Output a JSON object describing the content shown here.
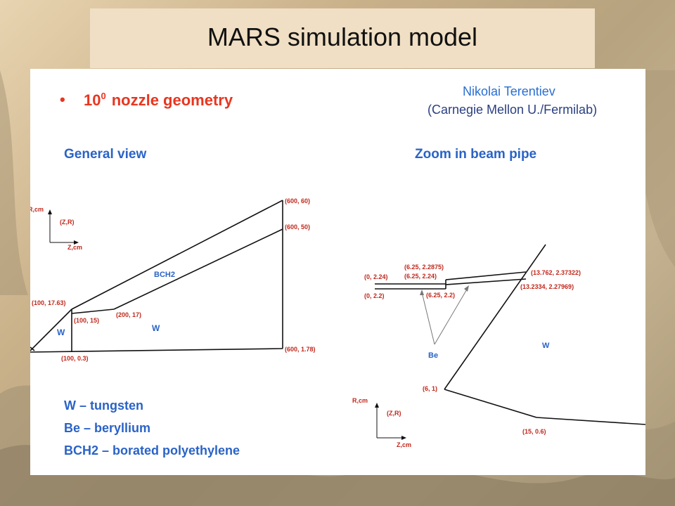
{
  "slide_title": "MARS simulation model",
  "bullet": "10",
  "bullet_sup": "0",
  "bullet_rest": "nozzle geometry",
  "author_name": "Nikolai Terentiev",
  "author_affiliation": "(Carnegie Mellon U./Fermilab)",
  "general_view": {
    "heading": "General  view",
    "axis_r": "R,cm",
    "axis_z": "Z,cm",
    "axis_zr": "(Z,R)",
    "labels": {
      "p600_60": "(600, 60)",
      "p600_50": "(600, 50)",
      "p100_1763": "(100, 17.63)",
      "p100_15": "(100, 15)",
      "p200_17": "(200, 17)",
      "p100_03": "(100, 0.3)",
      "p600_178": "(600, 1.78)",
      "bch2": "BCH2",
      "w_left": "W",
      "w_right": "W"
    }
  },
  "zoom_view": {
    "heading": "Zoom in beam pipe",
    "axis_r": "R,cm",
    "axis_z": "Z,cm",
    "axis_zr": "(Z,R)",
    "labels": {
      "p0_224": "(0, 2.24)",
      "p0_22": "(0, 2.2)",
      "p625_22875": "(6.25, 2.2875)",
      "p625_224": "(6.25, 2.24)",
      "p625_22": "(6.25, 2.2)",
      "p13762": "(13.762, 2.37322)",
      "p132334": "(13.2334, 2.27969)",
      "be": "Be",
      "w": "W",
      "p6_1": "(6, 1)",
      "p15_06": "(15, 0.6)"
    }
  },
  "legend": [
    "W – tungsten",
    "Be – beryllium",
    "BCH2 – borated polyethylene"
  ],
  "colors": {
    "accent_red": "#e8361f",
    "label_blue": "#2a63c6",
    "author_blue": "#2a6fd0",
    "annot_red": "#c0281c"
  }
}
